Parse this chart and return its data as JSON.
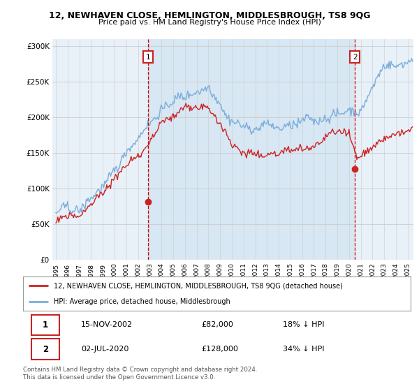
{
  "title": "12, NEWHAVEN CLOSE, HEMLINGTON, MIDDLESBROUGH, TS8 9QG",
  "subtitle": "Price paid vs. HM Land Registry's House Price Index (HPI)",
  "ylabel_ticks": [
    "£0",
    "£50K",
    "£100K",
    "£150K",
    "£200K",
    "£250K",
    "£300K"
  ],
  "ytick_vals": [
    0,
    50000,
    100000,
    150000,
    200000,
    250000,
    300000
  ],
  "ylim": [
    0,
    310000
  ],
  "xlim_start": 1994.7,
  "xlim_end": 2025.5,
  "hpi_color": "#7aaddb",
  "price_color": "#cc2222",
  "vline_color": "#cc0000",
  "hpi_fill_color": "#ddeeff",
  "marker1_date": 2002.88,
  "marker1_price": 82000,
  "marker2_date": 2020.5,
  "marker2_price": 128000,
  "legend_label1": "12, NEWHAVEN CLOSE, HEMLINGTON, MIDDLESBROUGH, TS8 9QG (detached house)",
  "legend_label2": "HPI: Average price, detached house, Middlesbrough",
  "bg_color": "#ffffff",
  "plot_bg_color": "#e8f0f8"
}
